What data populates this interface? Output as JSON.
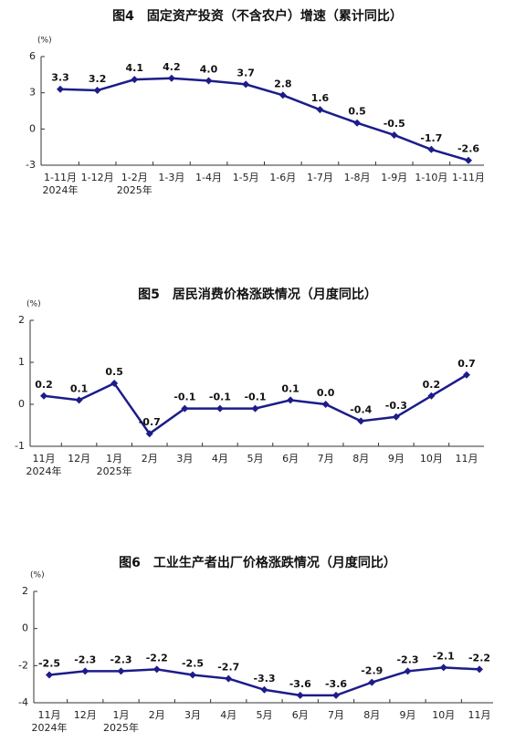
{
  "chart_data": [
    {
      "type": "line",
      "title": "图4　固定资产投资（不含农户）增速（累计同比）",
      "y_label": "(%)",
      "categories": [
        "1-11月\n2024年",
        "1-12月",
        "1-2月\n2025年",
        "1-3月",
        "1-4月",
        "1-5月",
        "1-6月",
        "1-7月",
        "1-8月",
        "1-9月",
        "1-10月",
        "1-11月"
      ],
      "series": [
        {
          "name": "固定资产投资增速",
          "color": "#1c1c8a",
          "values": [
            3.3,
            3.2,
            4.1,
            4.2,
            4.0,
            3.7,
            2.8,
            1.6,
            0.5,
            -0.5,
            -1.7,
            -2.6
          ],
          "value_labels": [
            "3.3",
            "3.2",
            "4.1",
            "4.2",
            "4.0",
            "3.7",
            "2.8",
            "1.6",
            "0.5",
            "-0.5",
            "-1.7",
            "-2.6"
          ]
        }
      ],
      "ylim": [
        -3,
        6
      ],
      "yticks": [
        6,
        3,
        0,
        -3
      ]
    },
    {
      "type": "line",
      "title": "图5　居民消费价格涨跌情况（月度同比）",
      "y_label": "(%)",
      "categories": [
        "11月\n2024年",
        "12月",
        "1月\n2025年",
        "2月",
        "3月",
        "4月",
        "5月",
        "6月",
        "7月",
        "8月",
        "9月",
        "10月",
        "11月"
      ],
      "series": [
        {
          "name": "居民消费价格",
          "color": "#1c1c8a",
          "values": [
            0.2,
            0.1,
            0.5,
            -0.7,
            -0.1,
            -0.1,
            -0.1,
            0.1,
            0.0,
            -0.4,
            -0.3,
            0.2,
            0.7
          ],
          "value_labels": [
            "0.2",
            "0.1",
            "0.5",
            "-0.7",
            "-0.1",
            "-0.1",
            "-0.1",
            "0.1",
            "0.0",
            "-0.4",
            "-0.3",
            "0.2",
            "0.7"
          ]
        }
      ],
      "ylim": [
        -1,
        2
      ],
      "yticks": [
        2,
        1,
        0,
        -1
      ]
    },
    {
      "type": "line",
      "title": "图6　工业生产者出厂价格涨跌情况（月度同比）",
      "y_label": "(%)",
      "categories": [
        "11月\n2024年",
        "12月",
        "1月\n2025年",
        "2月",
        "3月",
        "4月",
        "5月",
        "6月",
        "7月",
        "8月",
        "9月",
        "10月",
        "11月"
      ],
      "series": [
        {
          "name": "工业生产者出厂价格",
          "color": "#1c1c8a",
          "values": [
            -2.5,
            -2.3,
            -2.3,
            -2.2,
            -2.5,
            -2.7,
            -3.3,
            -3.6,
            -3.6,
            -2.9,
            -2.3,
            -2.1,
            -2.2
          ]
        }
      ],
      "ylim": [
        -4,
        2
      ],
      "yticks": [
        2,
        0,
        -2,
        -4
      ]
    }
  ]
}
